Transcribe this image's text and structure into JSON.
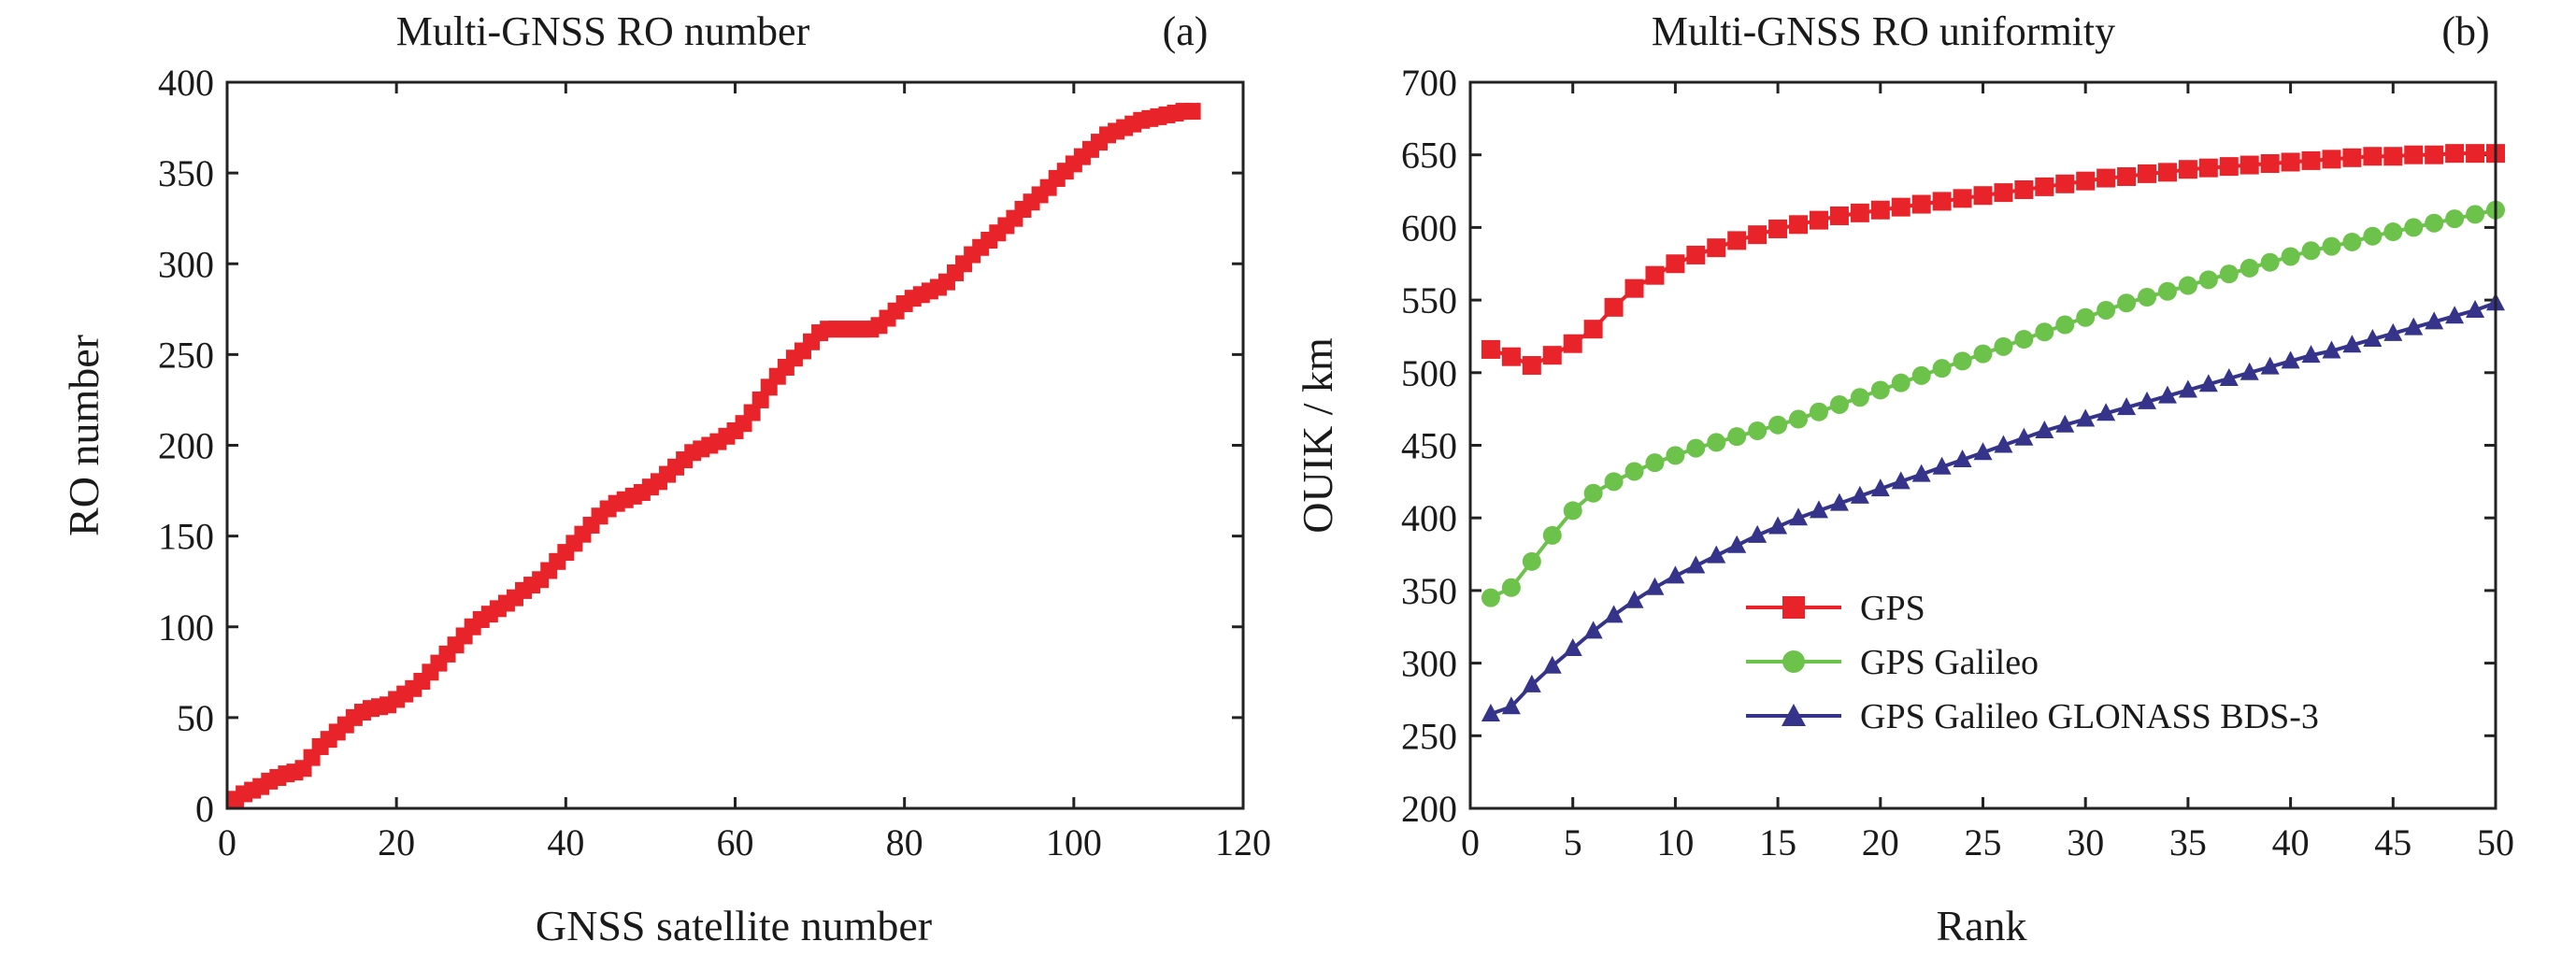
{
  "chart_data": [
    {
      "type": "line",
      "title": "Multi-GNSS RO number",
      "panel_label": "(a)",
      "xlabel": "GNSS satellite number",
      "ylabel": "RO number",
      "xlim": [
        0,
        120
      ],
      "ylim": [
        0,
        400
      ],
      "xticks": [
        0,
        20,
        40,
        60,
        80,
        100,
        120
      ],
      "yticks": [
        0,
        50,
        100,
        150,
        200,
        250,
        300,
        350,
        400
      ],
      "grid": false,
      "series": [
        {
          "marker": "square",
          "color": "#e8232a",
          "x": [
            1,
            2,
            3,
            4,
            5,
            6,
            7,
            8,
            9,
            10,
            11,
            12,
            13,
            14,
            15,
            16,
            17,
            18,
            19,
            20,
            21,
            22,
            23,
            24,
            25,
            26,
            27,
            28,
            29,
            30,
            31,
            32,
            33,
            34,
            35,
            36,
            37,
            38,
            39,
            40,
            41,
            42,
            43,
            44,
            45,
            46,
            47,
            48,
            49,
            50,
            51,
            52,
            53,
            54,
            55,
            56,
            57,
            58,
            59,
            60,
            61,
            62,
            63,
            64,
            65,
            66,
            67,
            68,
            69,
            70,
            71,
            72,
            73,
            74,
            75,
            76,
            77,
            78,
            79,
            80,
            81,
            82,
            83,
            84,
            85,
            86,
            87,
            88,
            89,
            90,
            91,
            92,
            93,
            94,
            95,
            96,
            97,
            98,
            99,
            100,
            101,
            102,
            103,
            104,
            105,
            106,
            107,
            108,
            109,
            110,
            111,
            112,
            113,
            114
          ],
          "y": [
            5,
            8,
            10,
            12,
            15,
            17,
            19,
            20,
            22,
            28,
            34,
            38,
            42,
            46,
            50,
            53,
            55,
            56,
            57,
            60,
            63,
            66,
            70,
            75,
            80,
            85,
            90,
            95,
            100,
            104,
            107,
            110,
            113,
            116,
            120,
            123,
            126,
            131,
            136,
            141,
            146,
            151,
            156,
            161,
            165,
            168,
            170,
            172,
            174,
            177,
            180,
            184,
            188,
            192,
            196,
            198,
            200,
            202,
            205,
            208,
            212,
            218,
            225,
            232,
            238,
            243,
            248,
            252,
            257,
            262,
            264,
            264,
            264,
            264,
            264,
            264,
            266,
            270,
            274,
            278,
            281,
            283,
            285,
            287,
            290,
            295,
            300,
            305,
            309,
            313,
            317,
            321,
            325,
            330,
            334,
            338,
            342,
            347,
            351,
            355,
            359,
            363,
            367,
            371,
            373,
            375,
            377,
            379,
            380,
            381,
            382,
            383,
            384,
            384
          ]
        }
      ]
    },
    {
      "type": "line",
      "title": "Multi-GNSS RO uniformity",
      "panel_label": "(b)",
      "xlabel": "Rank",
      "ylabel": "OUIK / km",
      "xlim": [
        0,
        50
      ],
      "ylim": [
        200,
        700
      ],
      "xticks": [
        0,
        5,
        10,
        15,
        20,
        25,
        30,
        35,
        40,
        45,
        50
      ],
      "yticks": [
        200,
        250,
        300,
        350,
        400,
        450,
        500,
        550,
        600,
        650,
        700
      ],
      "grid": false,
      "legend_position": "lower-center",
      "series": [
        {
          "name": "GPS",
          "marker": "square",
          "color": "#e8232a",
          "x": [
            1,
            2,
            3,
            4,
            5,
            6,
            7,
            8,
            9,
            10,
            11,
            12,
            13,
            14,
            15,
            16,
            17,
            18,
            19,
            20,
            21,
            22,
            23,
            24,
            25,
            26,
            27,
            28,
            29,
            30,
            31,
            32,
            33,
            34,
            35,
            36,
            37,
            38,
            39,
            40,
            41,
            42,
            43,
            44,
            45,
            46,
            47,
            48,
            49,
            50
          ],
          "y": [
            516,
            511,
            505,
            512,
            520,
            530,
            545,
            558,
            567,
            575,
            581,
            586,
            591,
            595,
            599,
            602,
            605,
            608,
            610,
            612,
            614,
            616,
            618,
            620,
            622,
            624,
            626,
            628,
            630,
            632,
            634,
            635,
            637,
            638,
            640,
            641,
            642,
            643,
            644,
            645,
            646,
            647,
            648,
            649,
            649,
            650,
            650,
            651,
            651,
            651
          ]
        },
        {
          "name": "GPS Galileo",
          "marker": "circle",
          "color": "#6cc24a",
          "x": [
            1,
            2,
            3,
            4,
            5,
            6,
            7,
            8,
            9,
            10,
            11,
            12,
            13,
            14,
            15,
            16,
            17,
            18,
            19,
            20,
            21,
            22,
            23,
            24,
            25,
            26,
            27,
            28,
            29,
            30,
            31,
            32,
            33,
            34,
            35,
            36,
            37,
            38,
            39,
            40,
            41,
            42,
            43,
            44,
            45,
            46,
            47,
            48,
            49,
            50
          ],
          "y": [
            345,
            352,
            370,
            388,
            405,
            417,
            425,
            432,
            438,
            443,
            448,
            452,
            456,
            460,
            464,
            468,
            473,
            478,
            483,
            488,
            493,
            498,
            503,
            508,
            513,
            518,
            523,
            528,
            533,
            538,
            543,
            548,
            552,
            556,
            560,
            564,
            568,
            572,
            576,
            580,
            584,
            587,
            590,
            594,
            597,
            600,
            603,
            606,
            609,
            612
          ]
        },
        {
          "name": "GPS Galileo GLONASS BDS-3",
          "marker": "triangle",
          "color": "#35338a",
          "x": [
            1,
            2,
            3,
            4,
            5,
            6,
            7,
            8,
            9,
            10,
            11,
            12,
            13,
            14,
            15,
            16,
            17,
            18,
            19,
            20,
            21,
            22,
            23,
            24,
            25,
            26,
            27,
            28,
            29,
            30,
            31,
            32,
            33,
            34,
            35,
            36,
            37,
            38,
            39,
            40,
            41,
            42,
            43,
            44,
            45,
            46,
            47,
            48,
            49,
            50
          ],
          "y": [
            265,
            270,
            285,
            298,
            310,
            322,
            333,
            343,
            352,
            360,
            367,
            374,
            381,
            388,
            394,
            400,
            405,
            410,
            415,
            420,
            425,
            430,
            435,
            440,
            445,
            450,
            455,
            460,
            464,
            468,
            472,
            476,
            480,
            484,
            488,
            492,
            496,
            500,
            504,
            508,
            512,
            515,
            519,
            523,
            527,
            531,
            535,
            539,
            543,
            548
          ]
        }
      ]
    }
  ]
}
